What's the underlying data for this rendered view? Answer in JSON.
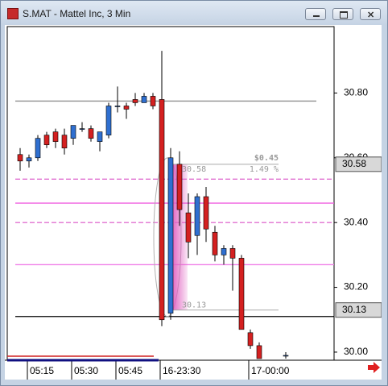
{
  "window": {
    "title": "S.MAT - Mattel Inc, 3 Min"
  },
  "chart_data": {
    "type": "candlestick",
    "up_color": "#2f6fd0",
    "down_color": "#d42020",
    "categories": [
      null,
      "05:15",
      null,
      null,
      null,
      null,
      "05:30",
      null,
      null,
      null,
      null,
      "05:45",
      null,
      null,
      null,
      null,
      "16-23:30",
      null,
      null,
      null,
      null,
      null,
      null,
      null,
      null,
      null,
      "17-00:00",
      null,
      null,
      null,
      null
    ],
    "open": [
      30.61,
      30.59,
      30.6,
      30.67,
      30.68,
      30.67,
      30.66,
      30.69,
      30.69,
      30.65,
      30.67,
      30.76,
      30.76,
      30.78,
      30.77,
      30.79,
      30.78,
      30.12,
      30.58,
      30.43,
      30.36,
      30.48,
      30.37,
      30.3,
      30.32,
      30.29,
      30.06,
      30.02,
      null,
      null,
      29.99
    ],
    "high": [
      30.63,
      30.61,
      30.67,
      30.68,
      30.69,
      30.69,
      30.7,
      30.71,
      30.7,
      30.67,
      30.77,
      30.82,
      30.77,
      30.8,
      30.8,
      30.8,
      30.93,
      30.63,
      30.62,
      30.49,
      30.49,
      30.51,
      30.39,
      30.33,
      30.33,
      30.3,
      30.07,
      30.03,
      null,
      null,
      30.0
    ],
    "low": [
      30.56,
      30.57,
      30.59,
      30.63,
      30.63,
      30.61,
      30.64,
      30.68,
      30.65,
      30.62,
      30.66,
      30.74,
      30.72,
      30.76,
      30.77,
      30.75,
      30.08,
      30.1,
      30.39,
      30.29,
      30.3,
      30.34,
      30.28,
      30.27,
      30.19,
      30.07,
      30.01,
      29.98,
      null,
      null,
      29.98
    ],
    "close": [
      30.59,
      30.6,
      30.66,
      30.64,
      30.65,
      30.63,
      30.7,
      30.69,
      30.66,
      30.68,
      30.76,
      30.76,
      30.75,
      30.77,
      30.79,
      30.76,
      30.1,
      30.6,
      30.44,
      30.34,
      30.48,
      30.38,
      30.3,
      30.32,
      30.29,
      30.07,
      30.02,
      29.98,
      null,
      null,
      29.99
    ],
    "ylim": [
      29.975,
      31.005
    ],
    "yticks": [
      {
        "value": 30.0,
        "label": "30.00"
      },
      {
        "value": 30.2,
        "label": "30.20"
      },
      {
        "value": 30.4,
        "label": "30.40"
      },
      {
        "value": 30.6,
        "label": "30.60"
      },
      {
        "value": 30.8,
        "label": "30.80"
      }
    ],
    "levels": [
      {
        "value": 30.775,
        "color": "#909090",
        "dash": false
      },
      {
        "value": 30.534,
        "color": "#e070d0",
        "dash": true
      },
      {
        "value": 30.46,
        "color": "#f060e0",
        "dash": false
      },
      {
        "value": 30.4,
        "color": "#e070d0",
        "dash": true
      },
      {
        "value": 30.27,
        "color": "#f080e8",
        "dash": false
      },
      {
        "value": 30.11,
        "color": "#000000",
        "dash": false
      }
    ],
    "measure": {
      "top": 30.58,
      "bottom": 30.13,
      "change": "$0.45",
      "percent": "1.49 %"
    },
    "price_tags": [
      30.58,
      30.13
    ]
  }
}
